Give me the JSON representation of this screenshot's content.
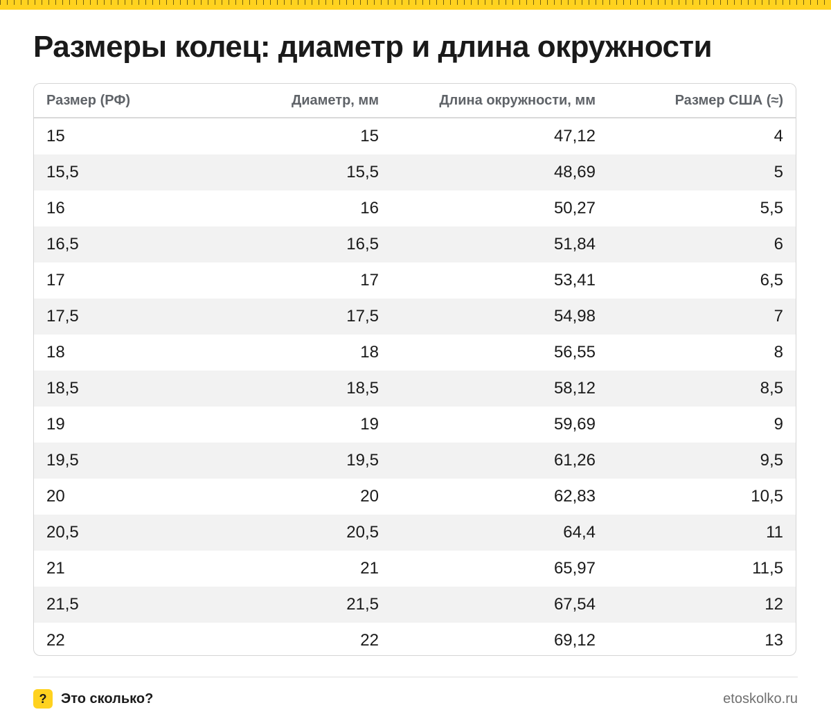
{
  "colors": {
    "accent": "#ffd21f",
    "stripe": "#f2f2f2",
    "header_text": "#5f6368"
  },
  "header": {
    "title": "Размеры колец: диаметр и длина окружности"
  },
  "table": {
    "columns": [
      "Размер (РФ)",
      "Диаметр, мм",
      "Длина окружности, мм",
      "Размер США (≈)"
    ],
    "rows": [
      [
        "15",
        "15",
        "47,12",
        "4"
      ],
      [
        "15,5",
        "15,5",
        "48,69",
        "5"
      ],
      [
        "16",
        "16",
        "50,27",
        "5,5"
      ],
      [
        "16,5",
        "16,5",
        "51,84",
        "6"
      ],
      [
        "17",
        "17",
        "53,41",
        "6,5"
      ],
      [
        "17,5",
        "17,5",
        "54,98",
        "7"
      ],
      [
        "18",
        "18",
        "56,55",
        "8"
      ],
      [
        "18,5",
        "18,5",
        "58,12",
        "8,5"
      ],
      [
        "19",
        "19",
        "59,69",
        "9"
      ],
      [
        "19,5",
        "19,5",
        "61,26",
        "9,5"
      ],
      [
        "20",
        "20",
        "62,83",
        "10,5"
      ],
      [
        "20,5",
        "20,5",
        "64,4",
        "11"
      ],
      [
        "21",
        "21",
        "65,97",
        "11,5"
      ],
      [
        "21,5",
        "21,5",
        "67,54",
        "12"
      ],
      [
        "22",
        "22",
        "69,12",
        "13"
      ]
    ]
  },
  "footer": {
    "icon": "question-icon",
    "icon_glyph": "?",
    "brand": "Это сколько?",
    "site": "etoskolko.ru"
  }
}
